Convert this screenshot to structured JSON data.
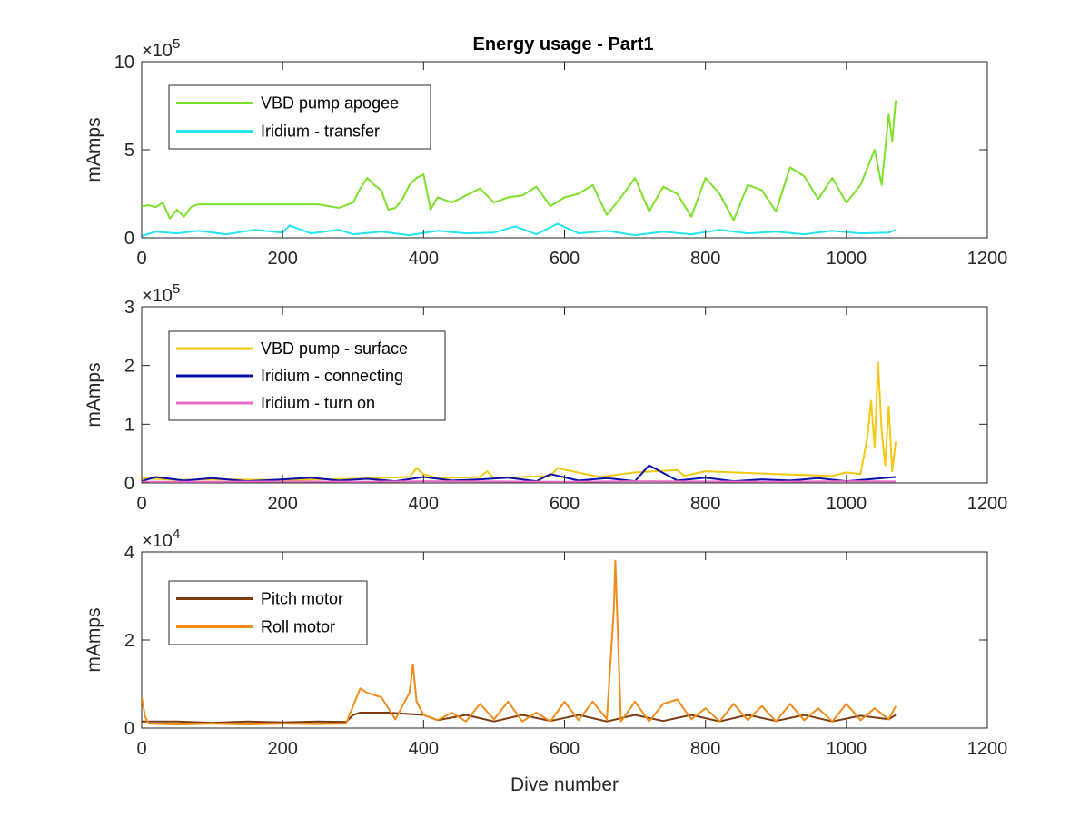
{
  "title": "Energy usage - Part1",
  "chart_data": [
    {
      "type": "line",
      "title": "Energy usage - Part1",
      "xlabel": "",
      "ylabel": "mAmps",
      "xlim": [
        0,
        1200
      ],
      "ylim": [
        0,
        1000000
      ],
      "xticks": [
        0,
        200,
        400,
        600,
        800,
        1000,
        1200
      ],
      "yticks": [
        0,
        500000,
        1000000
      ],
      "ytick_labels": [
        "0",
        "5",
        "10"
      ],
      "y_exponent": "5",
      "legend_position": "top-left",
      "grid": false,
      "series": [
        {
          "name": "VBD pump apogee",
          "color": "#7de12a",
          "x": [
            0,
            10,
            20,
            30,
            40,
            50,
            60,
            70,
            80,
            100,
            150,
            200,
            250,
            280,
            300,
            310,
            320,
            330,
            340,
            350,
            360,
            370,
            380,
            390,
            400,
            410,
            420,
            440,
            460,
            480,
            500,
            520,
            540,
            560,
            580,
            600,
            620,
            640,
            660,
            680,
            700,
            720,
            740,
            760,
            780,
            800,
            820,
            840,
            860,
            880,
            900,
            920,
            940,
            960,
            980,
            1000,
            1020,
            1040,
            1050,
            1060,
            1065,
            1070
          ],
          "y": [
            180000,
            185000,
            175000,
            200000,
            110000,
            160000,
            120000,
            175000,
            190000,
            190000,
            190000,
            190000,
            190000,
            170000,
            200000,
            280000,
            340000,
            300000,
            270000,
            160000,
            170000,
            220000,
            300000,
            340000,
            360000,
            160000,
            230000,
            200000,
            240000,
            280000,
            200000,
            230000,
            240000,
            290000,
            180000,
            230000,
            250000,
            300000,
            130000,
            230000,
            340000,
            150000,
            290000,
            250000,
            120000,
            340000,
            250000,
            100000,
            300000,
            270000,
            150000,
            400000,
            350000,
            220000,
            340000,
            200000,
            300000,
            500000,
            300000,
            700000,
            550000,
            780000
          ]
        },
        {
          "name": "Iridium - transfer",
          "color": "#22e5ee",
          "x": [
            0,
            20,
            50,
            80,
            120,
            160,
            200,
            210,
            240,
            280,
            300,
            340,
            380,
            420,
            460,
            500,
            530,
            560,
            590,
            620,
            660,
            700,
            740,
            780,
            820,
            860,
            900,
            940,
            980,
            1020,
            1060,
            1070
          ],
          "y": [
            10000,
            35000,
            25000,
            40000,
            20000,
            45000,
            30000,
            70000,
            25000,
            45000,
            20000,
            35000,
            15000,
            40000,
            25000,
            30000,
            65000,
            20000,
            80000,
            25000,
            40000,
            15000,
            35000,
            20000,
            45000,
            25000,
            35000,
            20000,
            40000,
            25000,
            30000,
            45000
          ]
        }
      ]
    },
    {
      "type": "line",
      "xlabel": "",
      "ylabel": "mAmps",
      "xlim": [
        0,
        1200
      ],
      "ylim": [
        0,
        300000
      ],
      "xticks": [
        0,
        200,
        400,
        600,
        800,
        1000,
        1200
      ],
      "yticks": [
        0,
        100000,
        200000,
        300000
      ],
      "ytick_labels": [
        "0",
        "1",
        "2",
        "3"
      ],
      "y_exponent": "5",
      "legend_position": "top-left",
      "grid": false,
      "series": [
        {
          "name": "VBD pump - surface",
          "color": "#f2c811",
          "x": [
            0,
            50,
            100,
            200,
            300,
            380,
            390,
            400,
            420,
            480,
            490,
            500,
            580,
            590,
            650,
            700,
            760,
            770,
            800,
            900,
            980,
            1000,
            1020,
            1030,
            1035,
            1040,
            1045,
            1050,
            1055,
            1060,
            1065,
            1070
          ],
          "y": [
            8000,
            5000,
            6000,
            5000,
            7000,
            10000,
            25000,
            15000,
            8000,
            10000,
            20000,
            8000,
            12000,
            25000,
            10000,
            18000,
            22000,
            12000,
            20000,
            15000,
            12000,
            18000,
            15000,
            80000,
            140000,
            60000,
            205000,
            90000,
            30000,
            130000,
            20000,
            70000
          ]
        },
        {
          "name": "Iridium - connecting",
          "color": "#0a0fa8",
          "x": [
            0,
            20,
            60,
            100,
            150,
            200,
            240,
            280,
            320,
            360,
            400,
            440,
            480,
            520,
            560,
            580,
            620,
            660,
            700,
            720,
            760,
            800,
            840,
            880,
            920,
            960,
            1000,
            1040,
            1070
          ],
          "y": [
            3000,
            10000,
            4000,
            8000,
            3000,
            6000,
            9000,
            4000,
            7000,
            3000,
            10000,
            4000,
            6000,
            9000,
            3000,
            15000,
            4000,
            8000,
            3000,
            30000,
            4000,
            9000,
            3000,
            6000,
            4000,
            8000,
            3000,
            7000,
            10000
          ]
        },
        {
          "name": "Iridium - turn on",
          "color": "#e86bc4",
          "x": [
            0,
            100,
            200,
            300,
            400,
            500,
            600,
            700,
            800,
            900,
            1000,
            1070
          ],
          "y": [
            2000,
            2000,
            2500,
            2000,
            3000,
            2500,
            2000,
            3000,
            2500,
            2000,
            3000,
            2500
          ]
        }
      ]
    },
    {
      "type": "line",
      "xlabel": "Dive number",
      "ylabel": "mAmps",
      "xlim": [
        0,
        1200
      ],
      "ylim": [
        0,
        40000
      ],
      "xticks": [
        0,
        200,
        400,
        600,
        800,
        1000,
        1200
      ],
      "yticks": [
        0,
        20000,
        40000
      ],
      "ytick_labels": [
        "0",
        "2",
        "4"
      ],
      "y_exponent": "4",
      "legend_position": "top-left",
      "grid": false,
      "series": [
        {
          "name": "Pitch motor",
          "color": "#7a3c10",
          "x": [
            0,
            50,
            100,
            150,
            200,
            250,
            290,
            300,
            310,
            350,
            400,
            420,
            460,
            500,
            540,
            580,
            620,
            660,
            700,
            740,
            780,
            820,
            860,
            900,
            940,
            980,
            1020,
            1060,
            1070
          ],
          "y": [
            1500,
            1500,
            1200,
            1500,
            1300,
            1500,
            1400,
            3000,
            3500,
            3500,
            3000,
            1800,
            3000,
            1500,
            3000,
            1600,
            3000,
            1500,
            3000,
            1600,
            3000,
            1500,
            3000,
            1600,
            3000,
            1500,
            2800,
            2000,
            3000
          ]
        },
        {
          "name": "Roll motor",
          "color": "#f08c19",
          "x": [
            0,
            5,
            10,
            50,
            100,
            150,
            200,
            250,
            290,
            310,
            320,
            340,
            360,
            380,
            385,
            390,
            400,
            420,
            440,
            460,
            480,
            500,
            520,
            540,
            560,
            580,
            600,
            620,
            640,
            660,
            670,
            672,
            680,
            700,
            720,
            740,
            760,
            780,
            800,
            820,
            840,
            860,
            880,
            900,
            920,
            940,
            960,
            980,
            1000,
            1020,
            1040,
            1060,
            1070
          ],
          "y": [
            7000,
            2500,
            1000,
            800,
            1000,
            800,
            1000,
            900,
            1000,
            9000,
            8000,
            7000,
            2000,
            8000,
            14500,
            6000,
            3000,
            1800,
            3500,
            1500,
            5500,
            2000,
            6000,
            1500,
            3500,
            1500,
            6000,
            1800,
            6000,
            2000,
            27000,
            38000,
            1500,
            6000,
            1500,
            5500,
            6500,
            2000,
            4500,
            1500,
            5500,
            1800,
            5000,
            1500,
            5500,
            1800,
            4500,
            1500,
            5500,
            1800,
            4500,
            2000,
            5000
          ]
        }
      ]
    }
  ]
}
